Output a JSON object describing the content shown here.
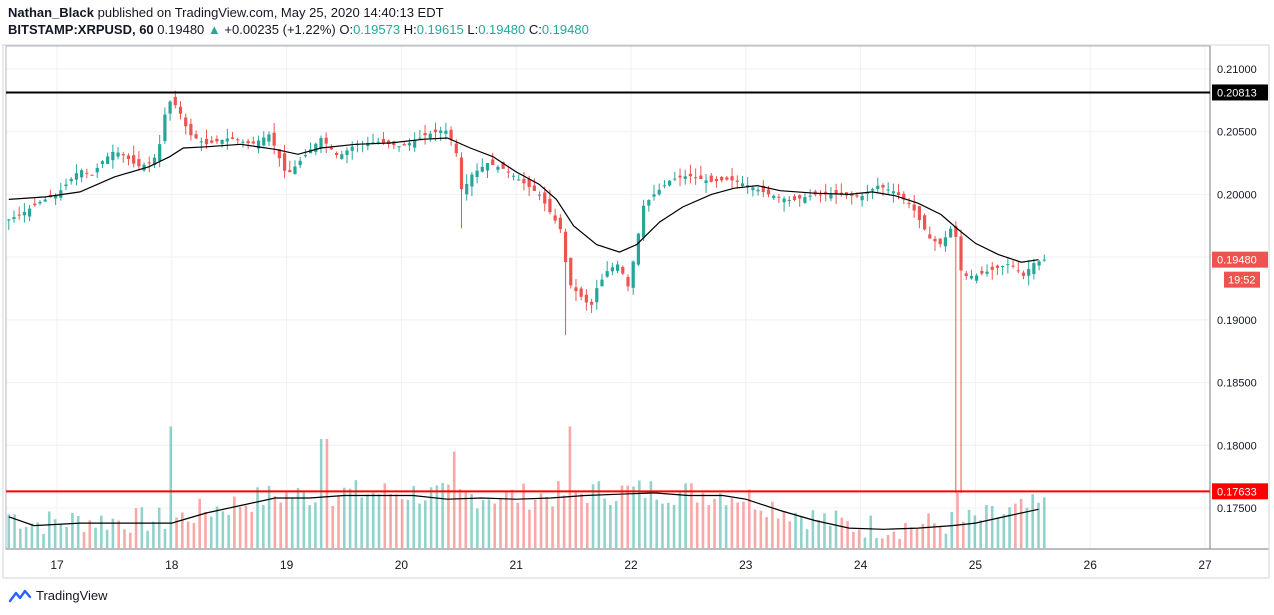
{
  "header": {
    "author": "Nathan_Black",
    "published_text": "published on TradingView.com, May 25, 2020 14:40:13 EDT",
    "symbol": "BITSTAMP:XRPUSD, 60",
    "last": "0.19480",
    "change_arrow": "▲",
    "change": "+0.00235 (+1.22%)",
    "o_label": "O:",
    "o_value": "0.19573",
    "h_label": "H:",
    "h_value": "0.19615",
    "l_label": "L:",
    "l_value": "0.19480",
    "c_label": "C:",
    "c_value": "0.19480"
  },
  "footer": {
    "brand": "TradingView",
    "logo_icon": "tradingview-logo-icon"
  },
  "colors": {
    "up": "#26a69a",
    "down": "#ef5350",
    "ma": "#000000",
    "resistance": "#000000",
    "support": "#ff0000",
    "price_badge": "#ef5350",
    "grid": "#eef0f3",
    "axis_text": "#131722"
  },
  "chart_data": {
    "type": "candlestick",
    "timeframe": "60",
    "y_tick_labels": [
      "0.21000",
      "0.20500",
      "0.20000",
      "0.19500",
      "0.19000",
      "0.18500",
      "0.18000",
      "0.17500"
    ],
    "x_tick_labels": [
      "17",
      "18",
      "19",
      "20",
      "21",
      "22",
      "23",
      "24",
      "25",
      "26",
      "27"
    ],
    "ylim": [
      0.1715,
      0.212
    ],
    "xlim": [
      16.55,
      27.05
    ],
    "horizontal_lines": [
      {
        "name": "resistance",
        "value": 0.20813,
        "label": "0.20813",
        "color": "#000000"
      },
      {
        "name": "support",
        "value": 0.17633,
        "label": "0.17633",
        "color": "#ff0000"
      }
    ],
    "last_price": {
      "value": 0.1948,
      "label": "0.19480",
      "countdown": "19:52"
    },
    "ma_series": [
      [
        16.58,
        0.1996
      ],
      [
        16.9,
        0.1998
      ],
      [
        17.2,
        0.2002
      ],
      [
        17.5,
        0.2014
      ],
      [
        17.8,
        0.2022
      ],
      [
        17.98,
        0.203
      ],
      [
        18.1,
        0.2037
      ],
      [
        18.3,
        0.2038
      ],
      [
        18.6,
        0.204
      ],
      [
        18.9,
        0.2036
      ],
      [
        19.1,
        0.2032
      ],
      [
        19.3,
        0.2037
      ],
      [
        19.6,
        0.204
      ],
      [
        19.9,
        0.2041
      ],
      [
        20.2,
        0.2044
      ],
      [
        20.4,
        0.2045
      ],
      [
        20.6,
        0.2037
      ],
      [
        20.8,
        0.203
      ],
      [
        21.0,
        0.2018
      ],
      [
        21.2,
        0.2008
      ],
      [
        21.35,
        0.1996
      ],
      [
        21.5,
        0.1975
      ],
      [
        21.7,
        0.196
      ],
      [
        21.9,
        0.1954
      ],
      [
        22.05,
        0.196
      ],
      [
        22.25,
        0.1978
      ],
      [
        22.45,
        0.199
      ],
      [
        22.7,
        0.2
      ],
      [
        22.9,
        0.2005
      ],
      [
        23.1,
        0.2007
      ],
      [
        23.3,
        0.2003
      ],
      [
        23.6,
        0.2001
      ],
      [
        23.9,
        0.2
      ],
      [
        24.1,
        0.2002
      ],
      [
        24.3,
        0.1999
      ],
      [
        24.5,
        0.1993
      ],
      [
        24.7,
        0.1984
      ],
      [
        24.85,
        0.1972
      ],
      [
        25.0,
        0.1961
      ],
      [
        25.2,
        0.1952
      ],
      [
        25.4,
        0.1946
      ],
      [
        25.55,
        0.1948
      ]
    ],
    "candles_close_path": [
      [
        16.58,
        0.198
      ],
      [
        16.7,
        0.1985
      ],
      [
        16.85,
        0.1994
      ],
      [
        17.0,
        0.2
      ],
      [
        17.1,
        0.201
      ],
      [
        17.2,
        0.202
      ],
      [
        17.3,
        0.2015
      ],
      [
        17.4,
        0.2027
      ],
      [
        17.5,
        0.2035
      ],
      [
        17.6,
        0.203
      ],
      [
        17.7,
        0.2022
      ],
      [
        17.8,
        0.2025
      ],
      [
        17.88,
        0.2032
      ],
      [
        17.93,
        0.206
      ],
      [
        17.97,
        0.2075
      ],
      [
        18.05,
        0.207
      ],
      [
        18.15,
        0.2048
      ],
      [
        18.3,
        0.204
      ],
      [
        18.5,
        0.2045
      ],
      [
        18.7,
        0.204
      ],
      [
        18.85,
        0.2048
      ],
      [
        19.0,
        0.2015
      ],
      [
        19.15,
        0.203
      ],
      [
        19.3,
        0.2045
      ],
      [
        19.45,
        0.203
      ],
      [
        19.6,
        0.204
      ],
      [
        19.8,
        0.2042
      ],
      [
        20.0,
        0.2038
      ],
      [
        20.2,
        0.2047
      ],
      [
        20.38,
        0.2052
      ],
      [
        20.47,
        0.2038
      ],
      [
        20.53,
        0.2
      ],
      [
        20.6,
        0.2015
      ],
      [
        20.75,
        0.2025
      ],
      [
        20.9,
        0.202
      ],
      [
        21.05,
        0.201
      ],
      [
        21.2,
        0.2
      ],
      [
        21.3,
        0.1985
      ],
      [
        21.4,
        0.197
      ],
      [
        21.45,
        0.193
      ],
      [
        21.55,
        0.192
      ],
      [
        21.65,
        0.191
      ],
      [
        21.7,
        0.1925
      ],
      [
        21.8,
        0.194
      ],
      [
        21.9,
        0.1945
      ],
      [
        21.97,
        0.1925
      ],
      [
        22.05,
        0.196
      ],
      [
        22.1,
        0.199
      ],
      [
        22.2,
        0.2
      ],
      [
        22.35,
        0.2012
      ],
      [
        22.5,
        0.2015
      ],
      [
        22.7,
        0.201
      ],
      [
        22.85,
        0.2012
      ],
      [
        23.0,
        0.2008
      ],
      [
        23.2,
        0.2
      ],
      [
        23.4,
        0.1995
      ],
      [
        23.6,
        0.2
      ],
      [
        23.8,
        0.2
      ],
      [
        24.0,
        0.1998
      ],
      [
        24.15,
        0.2007
      ],
      [
        24.3,
        0.2002
      ],
      [
        24.45,
        0.199
      ],
      [
        24.6,
        0.1965
      ],
      [
        24.7,
        0.196
      ],
      [
        24.8,
        0.1975
      ],
      [
        24.85,
        0.196
      ],
      [
        24.88,
        0.1935
      ],
      [
        25.0,
        0.1935
      ],
      [
        25.15,
        0.194
      ],
      [
        25.3,
        0.1945
      ],
      [
        25.42,
        0.1935
      ],
      [
        25.5,
        0.1945
      ],
      [
        25.6,
        0.1948
      ]
    ],
    "volume_ma": [
      [
        16.58,
        0.1743
      ],
      [
        16.8,
        0.1736
      ],
      [
        17.2,
        0.1738
      ],
      [
        17.6,
        0.1738
      ],
      [
        18.0,
        0.1738
      ],
      [
        18.3,
        0.1746
      ],
      [
        18.6,
        0.1752
      ],
      [
        18.9,
        0.1758
      ],
      [
        19.2,
        0.1758
      ],
      [
        19.5,
        0.176
      ],
      [
        19.8,
        0.176
      ],
      [
        20.1,
        0.176
      ],
      [
        20.4,
        0.1757
      ],
      [
        20.7,
        0.1758
      ],
      [
        21.0,
        0.1757
      ],
      [
        21.3,
        0.1758
      ],
      [
        21.6,
        0.176
      ],
      [
        21.9,
        0.1761
      ],
      [
        22.2,
        0.1762
      ],
      [
        22.5,
        0.176
      ],
      [
        22.8,
        0.176
      ],
      [
        23.0,
        0.1757
      ],
      [
        23.3,
        0.1748
      ],
      [
        23.6,
        0.174
      ],
      [
        23.9,
        0.1734
      ],
      [
        24.2,
        0.1733
      ],
      [
        24.5,
        0.1734
      ],
      [
        24.8,
        0.1736
      ],
      [
        25.0,
        0.1738
      ],
      [
        25.3,
        0.1744
      ],
      [
        25.55,
        0.1749
      ]
    ]
  }
}
